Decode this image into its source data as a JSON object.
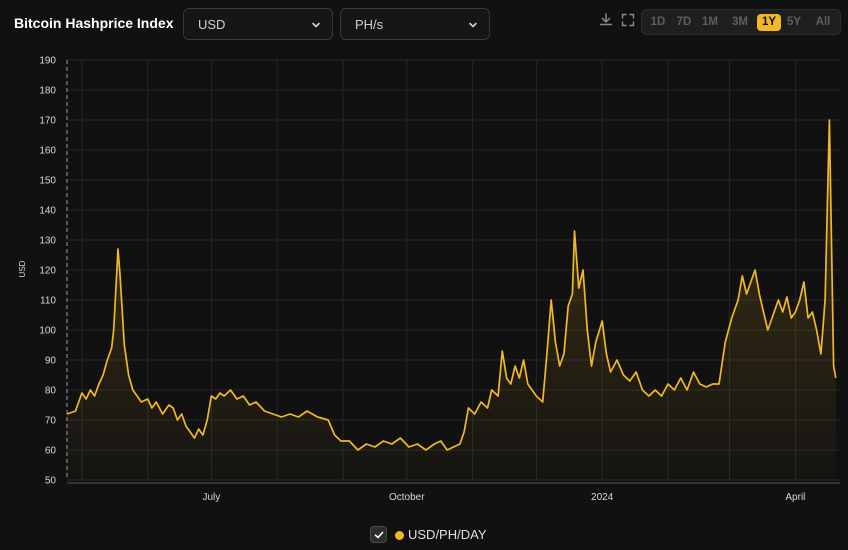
{
  "header": {
    "title": "Bitcoin Hashprice Index",
    "currency_select": "USD",
    "unit_select": "PH/s",
    "icons": [
      "download-icon",
      "fullscreen-icon",
      "chevron-down-icon"
    ],
    "ranges": [
      "1D",
      "7D",
      "1M",
      "3M",
      "1Y",
      "5Y",
      "All"
    ],
    "active_range": "1Y"
  },
  "legend": {
    "label": "USD/PH/DAY",
    "checked": true
  },
  "colors": {
    "line": "#f2b824",
    "background": "#111111",
    "grid": "#262626"
  },
  "chart_data": {
    "type": "area",
    "ylabel": "USD",
    "xlabel": "",
    "ylim": [
      50,
      190
    ],
    "yticks": [
      50,
      60,
      70,
      80,
      90,
      100,
      110,
      120,
      130,
      140,
      150,
      160,
      170,
      180,
      190
    ],
    "x_tick_labels": [
      "July",
      "October",
      "2024",
      "April"
    ],
    "xlim": [
      "2023-04-24",
      "2024-04-22"
    ],
    "grid": true,
    "series": [
      {
        "name": "USD/PH/DAY",
        "points": [
          [
            "2023-04-24",
            72
          ],
          [
            "2023-04-28",
            73
          ],
          [
            "2023-05-01",
            79
          ],
          [
            "2023-05-03",
            77
          ],
          [
            "2023-05-05",
            80
          ],
          [
            "2023-05-07",
            78
          ],
          [
            "2023-05-09",
            82
          ],
          [
            "2023-05-11",
            85
          ],
          [
            "2023-05-13",
            90
          ],
          [
            "2023-05-15",
            94
          ],
          [
            "2023-05-16",
            100
          ],
          [
            "2023-05-18",
            127
          ],
          [
            "2023-05-19",
            118
          ],
          [
            "2023-05-21",
            95
          ],
          [
            "2023-05-23",
            85
          ],
          [
            "2023-05-25",
            80
          ],
          [
            "2023-05-27",
            78
          ],
          [
            "2023-05-29",
            76
          ],
          [
            "2023-06-01",
            77
          ],
          [
            "2023-06-03",
            74
          ],
          [
            "2023-06-05",
            76
          ],
          [
            "2023-06-08",
            72
          ],
          [
            "2023-06-11",
            75
          ],
          [
            "2023-06-13",
            74
          ],
          [
            "2023-06-15",
            70
          ],
          [
            "2023-06-17",
            72
          ],
          [
            "2023-06-19",
            68
          ],
          [
            "2023-06-21",
            66
          ],
          [
            "2023-06-23",
            64
          ],
          [
            "2023-06-25",
            67
          ],
          [
            "2023-06-27",
            65
          ],
          [
            "2023-06-29",
            70
          ],
          [
            "2023-07-01",
            78
          ],
          [
            "2023-07-03",
            77
          ],
          [
            "2023-07-05",
            79
          ],
          [
            "2023-07-07",
            78
          ],
          [
            "2023-07-10",
            80
          ],
          [
            "2023-07-13",
            77
          ],
          [
            "2023-07-16",
            78
          ],
          [
            "2023-07-19",
            75
          ],
          [
            "2023-07-22",
            76
          ],
          [
            "2023-07-26",
            73
          ],
          [
            "2023-07-30",
            72
          ],
          [
            "2023-08-03",
            71
          ],
          [
            "2023-08-07",
            72
          ],
          [
            "2023-08-11",
            71
          ],
          [
            "2023-08-15",
            73
          ],
          [
            "2023-08-20",
            71
          ],
          [
            "2023-08-25",
            70
          ],
          [
            "2023-08-28",
            65
          ],
          [
            "2023-08-31",
            63
          ],
          [
            "2023-09-04",
            63
          ],
          [
            "2023-09-08",
            60
          ],
          [
            "2023-09-12",
            62
          ],
          [
            "2023-09-16",
            61
          ],
          [
            "2023-09-20",
            63
          ],
          [
            "2023-09-24",
            62
          ],
          [
            "2023-09-28",
            64
          ],
          [
            "2023-10-02",
            61
          ],
          [
            "2023-10-06",
            62
          ],
          [
            "2023-10-10",
            60
          ],
          [
            "2023-10-14",
            62
          ],
          [
            "2023-10-17",
            63
          ],
          [
            "2023-10-20",
            60
          ],
          [
            "2023-10-23",
            61
          ],
          [
            "2023-10-26",
            62
          ],
          [
            "2023-10-28",
            66
          ],
          [
            "2023-10-30",
            74
          ],
          [
            "2023-11-02",
            72
          ],
          [
            "2023-11-05",
            76
          ],
          [
            "2023-11-08",
            74
          ],
          [
            "2023-11-10",
            80
          ],
          [
            "2023-11-13",
            78
          ],
          [
            "2023-11-15",
            93
          ],
          [
            "2023-11-17",
            84
          ],
          [
            "2023-11-19",
            82
          ],
          [
            "2023-11-21",
            88
          ],
          [
            "2023-11-23",
            84
          ],
          [
            "2023-11-25",
            90
          ],
          [
            "2023-11-27",
            82
          ],
          [
            "2023-11-29",
            80
          ],
          [
            "2023-12-01",
            78
          ],
          [
            "2023-12-04",
            76
          ],
          [
            "2023-12-06",
            92
          ],
          [
            "2023-12-08",
            110
          ],
          [
            "2023-12-10",
            96
          ],
          [
            "2023-12-12",
            88
          ],
          [
            "2023-12-14",
            92
          ],
          [
            "2023-12-16",
            108
          ],
          [
            "2023-12-18",
            112
          ],
          [
            "2023-12-19",
            133
          ],
          [
            "2023-12-21",
            114
          ],
          [
            "2023-12-23",
            120
          ],
          [
            "2023-12-25",
            100
          ],
          [
            "2023-12-27",
            88
          ],
          [
            "2023-12-29",
            96
          ],
          [
            "2024-01-01",
            103
          ],
          [
            "2024-01-03",
            92
          ],
          [
            "2024-01-05",
            86
          ],
          [
            "2024-01-08",
            90
          ],
          [
            "2024-01-11",
            85
          ],
          [
            "2024-01-14",
            83
          ],
          [
            "2024-01-17",
            86
          ],
          [
            "2024-01-20",
            80
          ],
          [
            "2024-01-23",
            78
          ],
          [
            "2024-01-26",
            80
          ],
          [
            "2024-01-29",
            78
          ],
          [
            "2024-02-01",
            82
          ],
          [
            "2024-02-04",
            80
          ],
          [
            "2024-02-07",
            84
          ],
          [
            "2024-02-10",
            80
          ],
          [
            "2024-02-13",
            86
          ],
          [
            "2024-02-16",
            82
          ],
          [
            "2024-02-19",
            81
          ],
          [
            "2024-02-22",
            82
          ],
          [
            "2024-02-25",
            82
          ],
          [
            "2024-02-28",
            96
          ],
          [
            "2024-03-02",
            104
          ],
          [
            "2024-03-05",
            110
          ],
          [
            "2024-03-07",
            118
          ],
          [
            "2024-03-09",
            112
          ],
          [
            "2024-03-11",
            116
          ],
          [
            "2024-03-13",
            120
          ],
          [
            "2024-03-15",
            112
          ],
          [
            "2024-03-17",
            106
          ],
          [
            "2024-03-19",
            100
          ],
          [
            "2024-03-21",
            104
          ],
          [
            "2024-03-24",
            110
          ],
          [
            "2024-03-26",
            106
          ],
          [
            "2024-03-28",
            111
          ],
          [
            "2024-03-30",
            104
          ],
          [
            "2024-04-01",
            106
          ],
          [
            "2024-04-03",
            110
          ],
          [
            "2024-04-05",
            116
          ],
          [
            "2024-04-07",
            104
          ],
          [
            "2024-04-09",
            106
          ],
          [
            "2024-04-11",
            100
          ],
          [
            "2024-04-13",
            92
          ],
          [
            "2024-04-15",
            110
          ],
          [
            "2024-04-17",
            170
          ],
          [
            "2024-04-19",
            88
          ],
          [
            "2024-04-20",
            84
          ]
        ]
      }
    ]
  }
}
